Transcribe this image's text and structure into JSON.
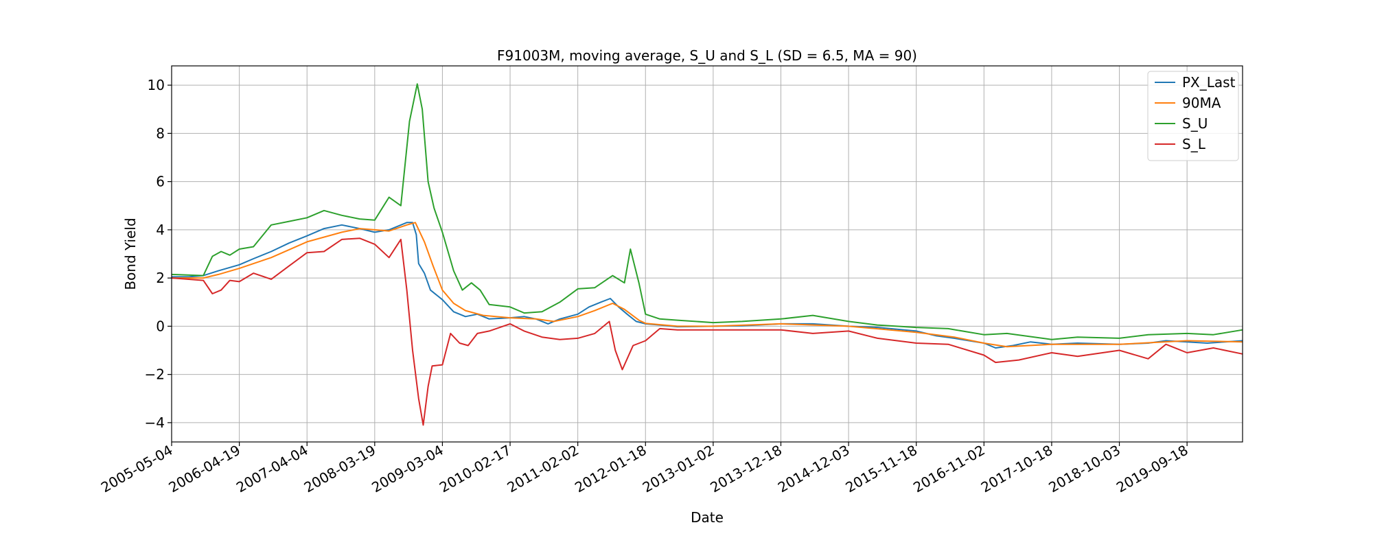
{
  "chart_data": {
    "type": "line",
    "title": "F91003M, moving average, S_U and S_L (SD = 6.5, MA = 90)",
    "xlabel": "Date",
    "ylabel": "Bond Yield",
    "x_axis": "date",
    "xlim": [
      "2005-05-04",
      "2020-07-01"
    ],
    "ylim": [
      -4.8,
      10.8
    ],
    "grid": true,
    "legend_position": "top-right",
    "x_ticks": [
      "2005-05-04",
      "2006-04-19",
      "2007-04-04",
      "2008-03-19",
      "2009-03-04",
      "2010-02-17",
      "2011-02-02",
      "2012-01-18",
      "2013-01-02",
      "2013-12-18",
      "2014-12-03",
      "2015-11-18",
      "2016-11-02",
      "2017-10-18",
      "2018-10-03",
      "2019-09-18"
    ],
    "y_ticks": [
      -4,
      -2,
      0,
      2,
      4,
      6,
      8,
      10
    ],
    "y_tick_labels": [
      "−4",
      "−2",
      "0",
      "2",
      "4",
      "6",
      "8",
      "10"
    ],
    "series": [
      {
        "name": "PX_Last",
        "color": "#1f77b4",
        "points": [
          [
            "2005-05-04",
            2.05
          ],
          [
            "2005-08-01",
            2.05
          ],
          [
            "2005-10-15",
            2.1
          ],
          [
            "2006-01-01",
            2.3
          ],
          [
            "2006-04-19",
            2.55
          ],
          [
            "2006-07-01",
            2.8
          ],
          [
            "2006-10-01",
            3.1
          ],
          [
            "2007-01-01",
            3.45
          ],
          [
            "2007-04-04",
            3.75
          ],
          [
            "2007-07-01",
            4.05
          ],
          [
            "2007-10-01",
            4.2
          ],
          [
            "2008-01-01",
            4.05
          ],
          [
            "2008-03-19",
            3.9
          ],
          [
            "2008-06-01",
            4.0
          ],
          [
            "2008-09-01",
            4.3
          ],
          [
            "2008-10-01",
            4.3
          ],
          [
            "2008-10-20",
            3.8
          ],
          [
            "2008-11-01",
            2.6
          ],
          [
            "2008-12-01",
            2.2
          ],
          [
            "2009-01-01",
            1.5
          ],
          [
            "2009-03-04",
            1.1
          ],
          [
            "2009-05-01",
            0.6
          ],
          [
            "2009-07-01",
            0.4
          ],
          [
            "2009-09-01",
            0.5
          ],
          [
            "2009-11-01",
            0.3
          ],
          [
            "2010-02-17",
            0.35
          ],
          [
            "2010-05-01",
            0.4
          ],
          [
            "2010-07-01",
            0.3
          ],
          [
            "2010-09-01",
            0.1
          ],
          [
            "2010-11-01",
            0.3
          ],
          [
            "2011-02-02",
            0.5
          ],
          [
            "2011-04-01",
            0.8
          ],
          [
            "2011-06-01",
            1.0
          ],
          [
            "2011-07-20",
            1.15
          ],
          [
            "2011-09-01",
            0.8
          ],
          [
            "2011-10-15",
            0.5
          ],
          [
            "2011-12-01",
            0.2
          ],
          [
            "2012-01-18",
            0.1
          ],
          [
            "2012-04-01",
            0.05
          ],
          [
            "2012-07-01",
            -0.02
          ],
          [
            "2013-01-02",
            0.0
          ],
          [
            "2013-06-01",
            0.02
          ],
          [
            "2013-12-18",
            0.1
          ],
          [
            "2014-06-01",
            0.1
          ],
          [
            "2014-12-03",
            0.0
          ],
          [
            "2015-05-01",
            -0.05
          ],
          [
            "2015-11-18",
            -0.2
          ],
          [
            "2016-03-01",
            -0.4
          ],
          [
            "2016-06-01",
            -0.5
          ],
          [
            "2016-11-02",
            -0.7
          ],
          [
            "2017-01-01",
            -0.9
          ],
          [
            "2017-04-01",
            -0.8
          ],
          [
            "2017-07-01",
            -0.65
          ],
          [
            "2017-10-18",
            -0.75
          ],
          [
            "2018-03-01",
            -0.7
          ],
          [
            "2018-10-03",
            -0.75
          ],
          [
            "2019-03-01",
            -0.7
          ],
          [
            "2019-06-01",
            -0.6
          ],
          [
            "2019-09-18",
            -0.65
          ],
          [
            "2020-01-01",
            -0.7
          ],
          [
            "2020-04-01",
            -0.65
          ],
          [
            "2020-07-01",
            -0.6
          ]
        ]
      },
      {
        "name": "90MA",
        "color": "#ff7f0e",
        "points": [
          [
            "2005-05-04",
            2.0
          ],
          [
            "2005-10-15",
            2.0
          ],
          [
            "2006-01-01",
            2.15
          ],
          [
            "2006-04-19",
            2.4
          ],
          [
            "2006-10-01",
            2.85
          ],
          [
            "2007-04-04",
            3.5
          ],
          [
            "2007-10-01",
            3.9
          ],
          [
            "2008-01-01",
            4.05
          ],
          [
            "2008-03-19",
            4.0
          ],
          [
            "2008-06-01",
            3.95
          ],
          [
            "2008-09-01",
            4.2
          ],
          [
            "2008-10-15",
            4.3
          ],
          [
            "2008-12-01",
            3.5
          ],
          [
            "2009-01-15",
            2.5
          ],
          [
            "2009-03-04",
            1.5
          ],
          [
            "2009-05-01",
            0.95
          ],
          [
            "2009-07-01",
            0.65
          ],
          [
            "2009-10-01",
            0.45
          ],
          [
            "2010-02-17",
            0.35
          ],
          [
            "2010-07-01",
            0.3
          ],
          [
            "2010-10-01",
            0.2
          ],
          [
            "2011-02-02",
            0.4
          ],
          [
            "2011-05-01",
            0.65
          ],
          [
            "2011-08-01",
            0.95
          ],
          [
            "2011-10-01",
            0.7
          ],
          [
            "2011-12-15",
            0.25
          ],
          [
            "2012-01-18",
            0.12
          ],
          [
            "2012-07-01",
            0.0
          ],
          [
            "2013-01-02",
            0.0
          ],
          [
            "2013-12-18",
            0.1
          ],
          [
            "2014-12-03",
            0.0
          ],
          [
            "2015-11-18",
            -0.25
          ],
          [
            "2016-06-01",
            -0.45
          ],
          [
            "2016-11-02",
            -0.7
          ],
          [
            "2017-03-01",
            -0.85
          ],
          [
            "2017-10-18",
            -0.75
          ],
          [
            "2018-10-03",
            -0.75
          ],
          [
            "2019-09-18",
            -0.6
          ],
          [
            "2020-07-01",
            -0.65
          ]
        ]
      },
      {
        "name": "S_U",
        "color": "#2ca02c",
        "points": [
          [
            "2005-05-04",
            2.15
          ],
          [
            "2005-10-15",
            2.1
          ],
          [
            "2005-12-01",
            2.9
          ],
          [
            "2006-01-15",
            3.1
          ],
          [
            "2006-03-01",
            2.95
          ],
          [
            "2006-04-19",
            3.2
          ],
          [
            "2006-07-01",
            3.3
          ],
          [
            "2006-10-01",
            4.2
          ],
          [
            "2007-01-01",
            4.35
          ],
          [
            "2007-04-04",
            4.5
          ],
          [
            "2007-07-01",
            4.8
          ],
          [
            "2007-10-01",
            4.6
          ],
          [
            "2008-01-01",
            4.45
          ],
          [
            "2008-03-19",
            4.4
          ],
          [
            "2008-06-01",
            5.35
          ],
          [
            "2008-08-01",
            5.0
          ],
          [
            "2008-09-15",
            8.5
          ],
          [
            "2008-10-25",
            10.05
          ],
          [
            "2008-11-20",
            9.0
          ],
          [
            "2008-12-20",
            6.0
          ],
          [
            "2009-01-20",
            4.9
          ],
          [
            "2009-03-04",
            3.9
          ],
          [
            "2009-05-01",
            2.3
          ],
          [
            "2009-06-15",
            1.5
          ],
          [
            "2009-08-01",
            1.8
          ],
          [
            "2009-09-15",
            1.5
          ],
          [
            "2009-11-01",
            0.9
          ],
          [
            "2010-02-17",
            0.8
          ],
          [
            "2010-05-01",
            0.55
          ],
          [
            "2010-08-01",
            0.6
          ],
          [
            "2010-11-01",
            1.0
          ],
          [
            "2011-02-02",
            1.55
          ],
          [
            "2011-05-01",
            1.6
          ],
          [
            "2011-08-01",
            2.1
          ],
          [
            "2011-10-01",
            1.8
          ],
          [
            "2011-11-01",
            3.2
          ],
          [
            "2011-12-15",
            1.8
          ],
          [
            "2012-01-18",
            0.5
          ],
          [
            "2012-04-01",
            0.3
          ],
          [
            "2012-07-01",
            0.25
          ],
          [
            "2013-01-02",
            0.15
          ],
          [
            "2013-06-01",
            0.2
          ],
          [
            "2013-12-18",
            0.3
          ],
          [
            "2014-06-01",
            0.45
          ],
          [
            "2014-12-03",
            0.2
          ],
          [
            "2015-05-01",
            0.05
          ],
          [
            "2015-11-18",
            -0.05
          ],
          [
            "2016-05-01",
            -0.1
          ],
          [
            "2016-11-02",
            -0.35
          ],
          [
            "2017-03-01",
            -0.3
          ],
          [
            "2017-10-18",
            -0.55
          ],
          [
            "2018-03-01",
            -0.45
          ],
          [
            "2018-10-03",
            -0.5
          ],
          [
            "2019-03-01",
            -0.35
          ],
          [
            "2019-09-18",
            -0.3
          ],
          [
            "2020-02-01",
            -0.35
          ],
          [
            "2020-07-01",
            -0.15
          ]
        ]
      },
      {
        "name": "S_L",
        "color": "#d62728",
        "points": [
          [
            "2005-05-04",
            2.0
          ],
          [
            "2005-10-15",
            1.9
          ],
          [
            "2005-12-01",
            1.35
          ],
          [
            "2006-01-15",
            1.5
          ],
          [
            "2006-03-01",
            1.9
          ],
          [
            "2006-04-19",
            1.85
          ],
          [
            "2006-07-01",
            2.2
          ],
          [
            "2006-10-01",
            1.95
          ],
          [
            "2007-01-01",
            2.5
          ],
          [
            "2007-04-04",
            3.05
          ],
          [
            "2007-07-01",
            3.1
          ],
          [
            "2007-10-01",
            3.6
          ],
          [
            "2008-01-01",
            3.65
          ],
          [
            "2008-03-19",
            3.4
          ],
          [
            "2008-06-01",
            2.85
          ],
          [
            "2008-08-01",
            3.6
          ],
          [
            "2008-09-01",
            1.5
          ],
          [
            "2008-10-01",
            -1.0
          ],
          [
            "2008-11-01",
            -3.0
          ],
          [
            "2008-11-25",
            -4.1
          ],
          [
            "2008-12-20",
            -2.5
          ],
          [
            "2009-01-10",
            -1.65
          ],
          [
            "2009-03-04",
            -1.6
          ],
          [
            "2009-04-15",
            -0.3
          ],
          [
            "2009-06-01",
            -0.7
          ],
          [
            "2009-07-15",
            -0.8
          ],
          [
            "2009-09-01",
            -0.3
          ],
          [
            "2009-11-01",
            -0.2
          ],
          [
            "2010-02-17",
            0.1
          ],
          [
            "2010-05-01",
            -0.2
          ],
          [
            "2010-08-01",
            -0.45
          ],
          [
            "2010-11-01",
            -0.55
          ],
          [
            "2011-02-02",
            -0.5
          ],
          [
            "2011-05-01",
            -0.3
          ],
          [
            "2011-07-15",
            0.2
          ],
          [
            "2011-08-15",
            -1.0
          ],
          [
            "2011-09-20",
            -1.8
          ],
          [
            "2011-11-15",
            -0.8
          ],
          [
            "2012-01-18",
            -0.6
          ],
          [
            "2012-04-01",
            -0.1
          ],
          [
            "2012-07-01",
            -0.15
          ],
          [
            "2013-01-02",
            -0.15
          ],
          [
            "2013-12-18",
            -0.15
          ],
          [
            "2014-06-01",
            -0.3
          ],
          [
            "2014-12-03",
            -0.2
          ],
          [
            "2015-05-01",
            -0.5
          ],
          [
            "2015-11-18",
            -0.7
          ],
          [
            "2016-05-01",
            -0.75
          ],
          [
            "2016-11-02",
            -1.2
          ],
          [
            "2017-01-01",
            -1.5
          ],
          [
            "2017-05-01",
            -1.4
          ],
          [
            "2017-10-18",
            -1.1
          ],
          [
            "2018-03-01",
            -1.25
          ],
          [
            "2018-10-03",
            -1.0
          ],
          [
            "2019-03-01",
            -1.35
          ],
          [
            "2019-06-01",
            -0.75
          ],
          [
            "2019-09-18",
            -1.1
          ],
          [
            "2020-02-01",
            -0.9
          ],
          [
            "2020-07-01",
            -1.15
          ]
        ]
      }
    ]
  }
}
